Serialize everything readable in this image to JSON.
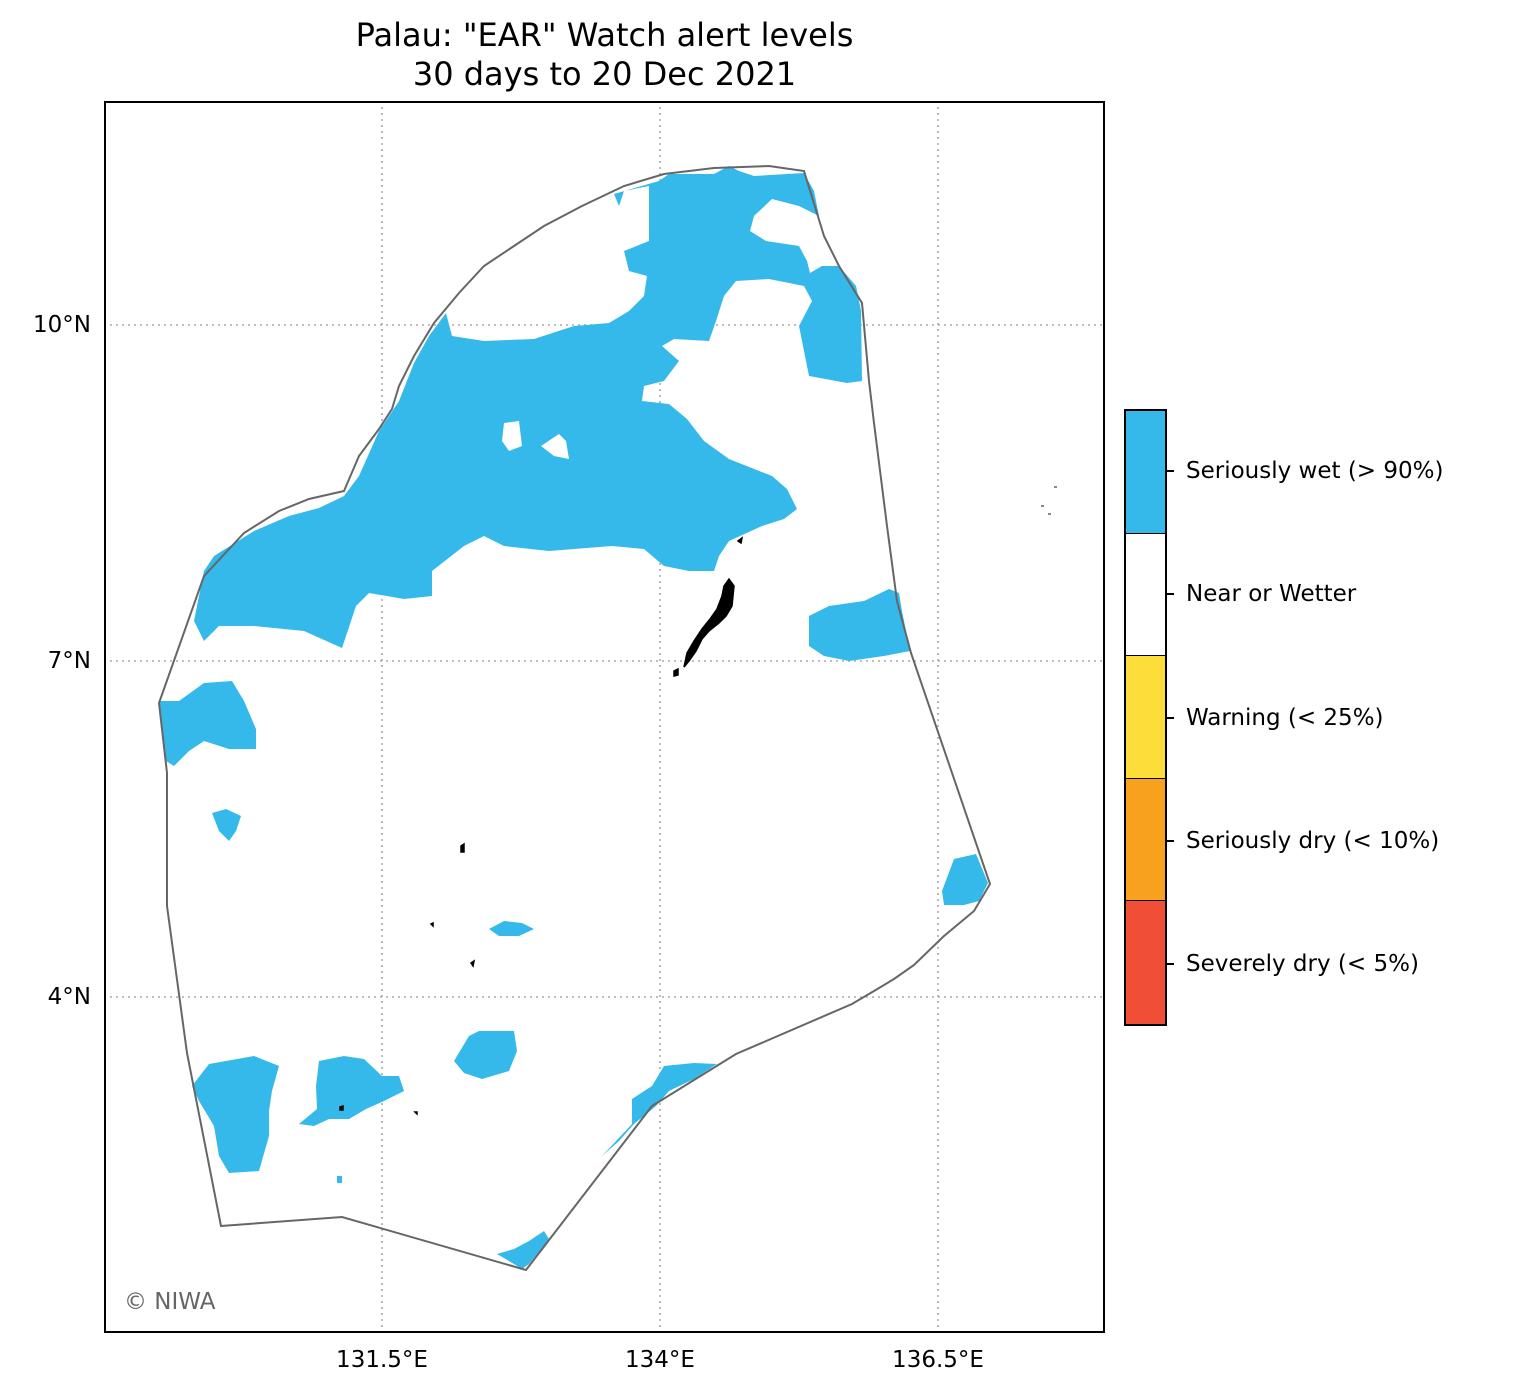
{
  "title": {
    "line1": "Palau: \"EAR\" Watch alert levels",
    "line2": "30 days to 20 Dec 2021"
  },
  "axes": {
    "lat_ticks": [
      "10°N",
      "7°N",
      "4°N"
    ],
    "lon_ticks": [
      "131.5°E",
      "134°E",
      "136.5°E"
    ],
    "gridlines": "dotted"
  },
  "legend": {
    "placement": "right",
    "items": [
      {
        "label": "Seriously wet (> 90%)",
        "color": "#35b9ea"
      },
      {
        "label": "Near or Wetter",
        "color": "#ffffff"
      },
      {
        "label": "Warning (< 25%)",
        "color": "#fddd3a"
      },
      {
        "label": "Seriously dry (< 10%)",
        "color": "#f7a11e"
      },
      {
        "label": "Severely dry (< 5%)",
        "color": "#f04e37"
      }
    ]
  },
  "map": {
    "region": "Palau",
    "eez_outline_color": "#666666",
    "land_color": "#000000"
  },
  "copyright": "© NIWA"
}
